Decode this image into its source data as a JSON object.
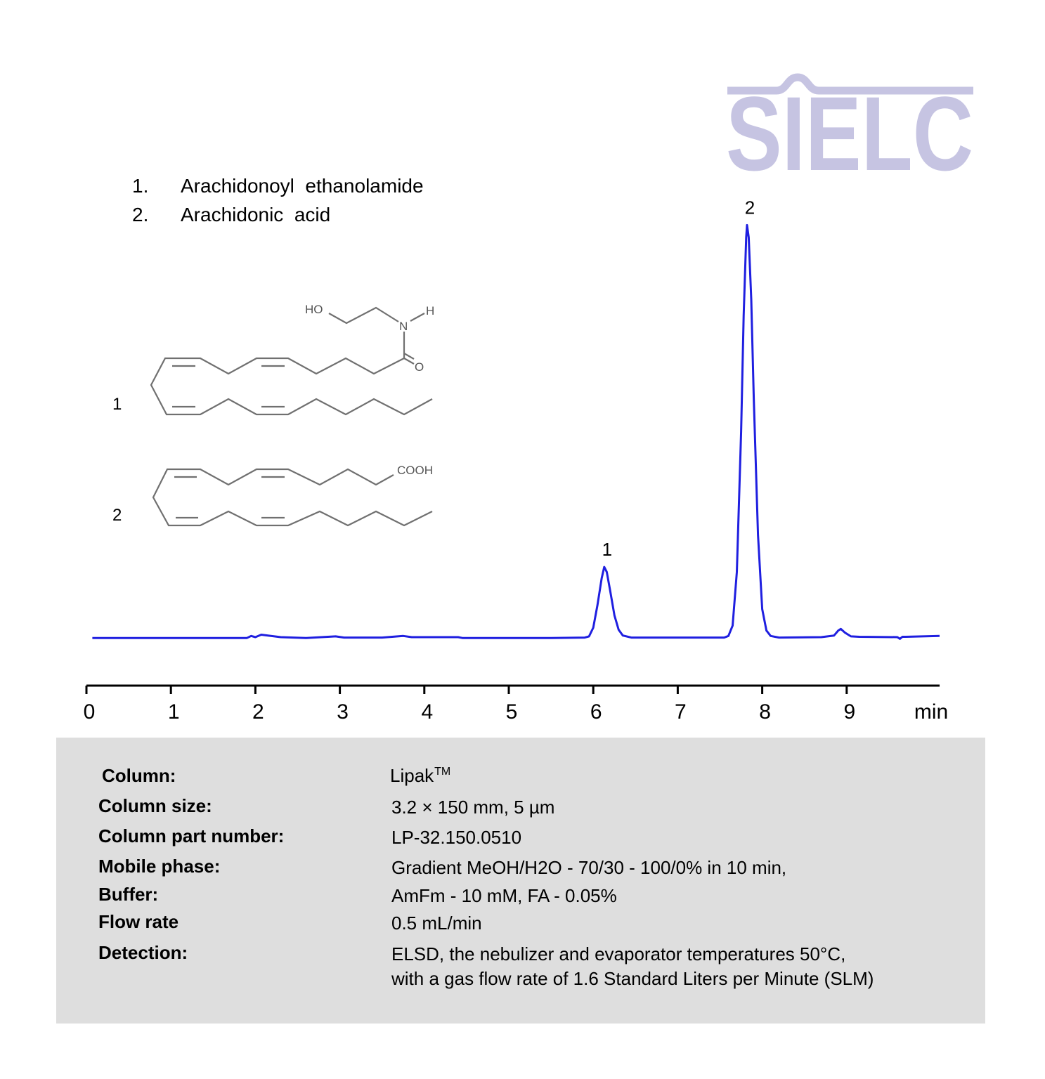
{
  "chart_data": {
    "type": "line",
    "x": [
      0.07,
      1.9,
      1.95,
      2.0,
      2.07,
      2.15,
      2.3,
      2.6,
      2.95,
      3.05,
      3.5,
      3.75,
      3.85,
      4.4,
      4.45,
      5.5,
      5.9,
      5.95,
      6.0,
      6.05,
      6.1,
      6.13,
      6.16,
      6.2,
      6.25,
      6.3,
      6.35,
      6.45,
      7.0,
      7.55,
      7.6,
      7.65,
      7.7,
      7.75,
      7.78,
      7.81,
      7.82,
      7.84,
      7.87,
      7.9,
      7.95,
      8.0,
      8.05,
      8.1,
      8.2,
      8.7,
      8.85,
      8.9,
      8.93,
      8.98,
      9.05,
      9.15,
      9.6,
      9.63,
      9.66,
      9.7,
      9.9,
      10.1
    ],
    "values": [
      0,
      0,
      0.5,
      0.2,
      0.8,
      0.6,
      0.2,
      0,
      0.4,
      0.1,
      0.1,
      0.5,
      0.2,
      0.2,
      0,
      0,
      0.1,
      0.4,
      2.5,
      8,
      14.5,
      17.2,
      16,
      11.5,
      5.5,
      2,
      0.6,
      0.1,
      0.1,
      0.1,
      0.5,
      3,
      16,
      50,
      78,
      97,
      100,
      97,
      82,
      58,
      25,
      7,
      1.8,
      0.5,
      0.1,
      0.2,
      0.6,
      1.8,
      2.2,
      1.3,
      0.4,
      0.3,
      0.2,
      -0.2,
      0.3,
      0.3,
      0.4,
      0.5
    ],
    "color": "#1f1fe0",
    "xlim": [
      0,
      10.1
    ],
    "xticks": [
      0,
      1,
      2,
      3,
      4,
      5,
      6,
      7,
      8,
      9
    ],
    "xlabel": "min",
    "ylim": [
      -10,
      105
    ],
    "peak_labels": [
      {
        "label": "1",
        "x": 6.13
      },
      {
        "label": "2",
        "x": 7.82
      }
    ]
  },
  "logo": "SIELC",
  "compounds": [
    {
      "number": "1.",
      "name": "Arachidonoyl  ethanolamide"
    },
    {
      "number": "2.",
      "name": "Arachidonic  acid"
    }
  ],
  "structures": {
    "labels": [
      "1",
      "2"
    ],
    "atoms": [
      "HO",
      "N",
      "H",
      "O",
      "COOH"
    ]
  },
  "conditions": [
    {
      "label": "Column:",
      "value": "Lipak",
      "sup": "TM"
    },
    {
      "label": "Column size:",
      "value": "3.2 × 150 mm, 5 µm"
    },
    {
      "label": "Column part number:",
      "value": "LP-32.150.0510"
    },
    {
      "label": "Mobile phase:",
      "value": "Gradient MeOH/H2O - 70/30 - 100/0% in 10 min,"
    },
    {
      "label": "Buffer:",
      "value": "AmFm - 10 mM, FA - 0.05%"
    },
    {
      "label": "Flow rate",
      "value": "0.5 mL/min"
    },
    {
      "label": "Detection:",
      "value": "ELSD, the nebulizer and evaporator temperatures 50°C,",
      "value2": "with a gas flow rate of 1.6 Standard Liters per Minute (SLM)"
    }
  ]
}
